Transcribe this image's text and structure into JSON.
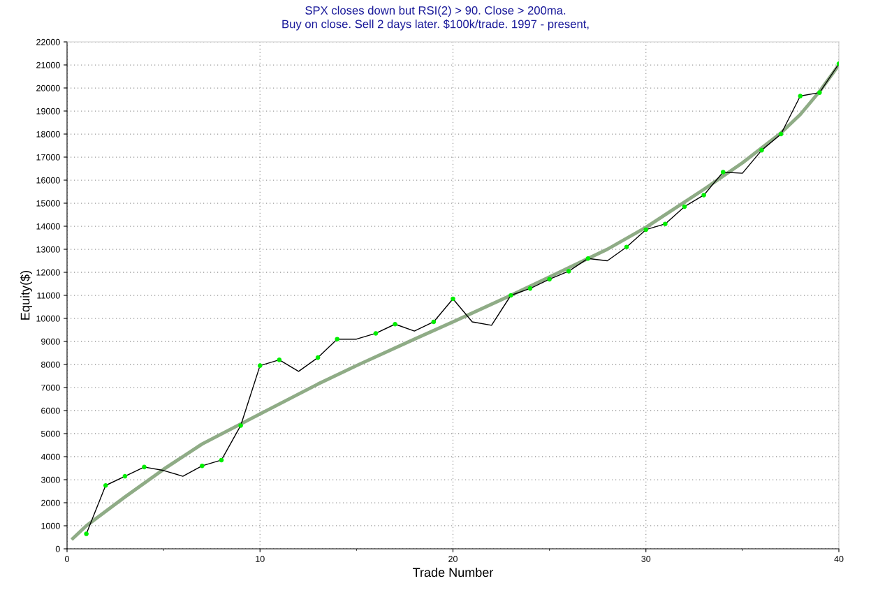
{
  "chart_data": {
    "type": "line",
    "title": "SPX closes down but RSI(2) > 90. Close > 200ma.\nBuy on close. Sell 2 days later. $100k/trade. 1997 - present,",
    "xlabel": "Trade Number",
    "ylabel": "Equity($)",
    "x": [
      1,
      2,
      3,
      4,
      5,
      6,
      7,
      8,
      9,
      10,
      11,
      12,
      13,
      14,
      15,
      16,
      17,
      18,
      19,
      20,
      21,
      22,
      23,
      24,
      25,
      26,
      27,
      28,
      29,
      30,
      31,
      32,
      33,
      34,
      35,
      36,
      37,
      38,
      39,
      40
    ],
    "series": [
      {
        "color": "#000000",
        "marker": "none",
        "values": [
          650,
          2750,
          3150,
          3550,
          3400,
          3150,
          3600,
          3850,
          5350,
          7950,
          8200,
          7700,
          8300,
          9100,
          9100,
          9350,
          9750,
          9450,
          9850,
          10850,
          9850,
          9700,
          11000,
          11300,
          11700,
          12050,
          12600,
          12500,
          13100,
          13850,
          14100,
          14850,
          15350,
          16350,
          16300,
          17300,
          18000,
          19650,
          19800,
          21050
        ]
      },
      {
        "type": "scatter",
        "color": "#00ee00",
        "marker": "circle",
        "values": [
          650,
          2750,
          3150,
          3550,
          null,
          null,
          3600,
          3850,
          5350,
          7950,
          8200,
          null,
          8300,
          9100,
          null,
          9350,
          9750,
          null,
          9850,
          10850,
          null,
          null,
          11000,
          11300,
          11700,
          12050,
          12600,
          null,
          13100,
          13850,
          14100,
          14850,
          15350,
          16350,
          null,
          17300,
          18000,
          19650,
          19800,
          21050
        ]
      },
      {
        "type": "line",
        "color": "#8fac86",
        "marker": "none",
        "x": [
          0.3,
          1,
          3,
          5,
          7,
          10,
          13,
          15,
          18,
          20,
          23,
          25,
          28,
          30,
          33,
          35,
          37,
          38,
          39,
          40
        ],
        "values": [
          450,
          1000,
          2250,
          3450,
          4550,
          5850,
          7150,
          7950,
          9100,
          9850,
          11000,
          11800,
          13000,
          13950,
          15600,
          16750,
          18050,
          18850,
          19850,
          21000
        ]
      }
    ],
    "xlim": [
      0,
      40
    ],
    "ylim": [
      0,
      22000
    ],
    "xticks": [
      0,
      {
        "value": 5,
        "label": null
      },
      10,
      {
        "value": 15,
        "label": null
      },
      20,
      {
        "value": 25,
        "label": null
      },
      30,
      {
        "value": 35,
        "label": null
      },
      40
    ],
    "yticks": [
      0,
      1000,
      2000,
      3000,
      4000,
      5000,
      6000,
      7000,
      8000,
      9000,
      10000,
      11000,
      12000,
      13000,
      14000,
      15000,
      16000,
      17000,
      18000,
      19000,
      20000,
      21000,
      22000
    ],
    "grid": true,
    "line_style": "solid"
  }
}
